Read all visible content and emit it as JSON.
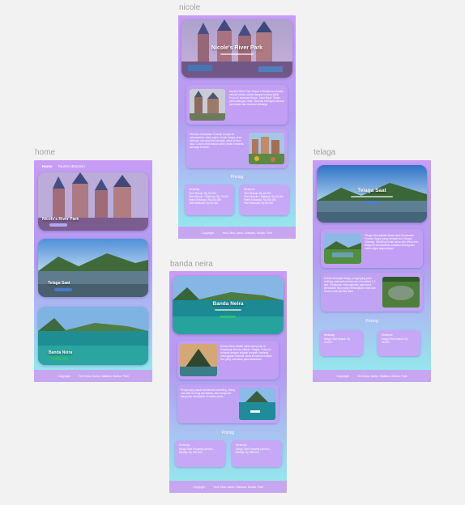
{
  "frames": {
    "nicole": {
      "label": "nicole"
    },
    "home": {
      "label": "home"
    },
    "telaga": {
      "label": "telaga"
    },
    "banda": {
      "label": "banda neira"
    }
  },
  "home": {
    "nav": {
      "home": "Home",
      "attraction": "Tourist Attraction"
    },
    "cards": [
      {
        "title": "Nicole's River Park"
      },
      {
        "title": "Telaga Saat"
      },
      {
        "title": "Banda Neira"
      }
    ]
  },
  "footer": {
    "copyright": "Copyright",
    "names": "Yeni Dina, Asmo, Nafiana, Mulda, Putri"
  },
  "nicole": {
    "title": "Nicole's River Park",
    "p1": "Nicole's River Park Resort & Restaurant adalah sebuah taman wisata dengan konsep kastil Eropa di kawasan Bogor, Jawa Barat. Selain pemandangan indah, tersedia berbagai wahana permainan dan restoran keluarga.",
    "p2": "Terletak di kawasan Puncak, tempat ini menawarkan udara sejuk, taman bunga, area berkuda, dan spot foto menarik untuk semua usia. Cocok untuk liburan akhir pekan bersama keluarga tercinta.",
    "pricing": "Pricing",
    "weekday": {
      "label": "Weekday",
      "items": [
        "Tiket Masuk: Rp 30.000",
        "Tiket Masuk + Wahana: Rp 75.000",
        "Paket Keluarga: Rp 200.000",
        "Tiket Berkuda: Rp 50.000"
      ]
    },
    "weekend": {
      "label": "Weekend",
      "items": [
        "Tiket Masuk: Rp 40.000",
        "Tiket Masuk + Wahana: Rp 90.000",
        "Paket Keluarga: Rp 250.000",
        "Tiket Berkuda: Rp 60.000"
      ]
    }
  },
  "telaga": {
    "title": "Telaga Saat",
    "p1": "Telaga Saat adalah danau kecil di kawasan Puncak, Bogor yang menjadi hulu Sungai Ciliwung. Dikelilingi hutan pinus dan kebun teh, telaga ini menawarkan suasana tenang dan udara segar pegunungan.",
    "p2": "Untuk mencapai telaga, pengunjung perlu trekking melewati perkebunan teh sekitar 1-2 jam. Perjalanan menyuguhkan panorama perbukitan hijau yang memanjakan mata dan cocok untuk pecinta alam.",
    "pricing": "Pricing",
    "weekday": {
      "label": "Weekday",
      "items": [
        "Harga Tiket Masuk: Rp 10.000"
      ]
    },
    "weekend": {
      "label": "Weekend",
      "items": [
        "Harga Tiket Masuk: Rp 15.000"
      ]
    }
  },
  "banda": {
    "title": "Banda Neira",
    "p1": "Banda Neira adalah salah satu pulau di Kepulauan Banda, Maluku Tengah. Pulau ini terkenal dengan sejarah rempah, benteng peninggalan kolonial, serta keindahan bawah laut yang memukau para wisatawan.",
    "p2": "Pengunjung dapat menikmati snorkeling, diving, mendaki Gunung Api Banda, dan menyusuri bangunan bersejarah di sekitar pulau.",
    "pricing": "Pricing",
    "weekday": {
      "label": "Weekday",
      "items": [
        "Harga Tiket Pesawat (Ambon - Banda): Rp 500.000"
      ]
    },
    "weekend": {
      "label": "Weekend",
      "items": [
        "Harga Tiket Pesawat (Ambon - Banda): Rp 650.000"
      ]
    }
  }
}
